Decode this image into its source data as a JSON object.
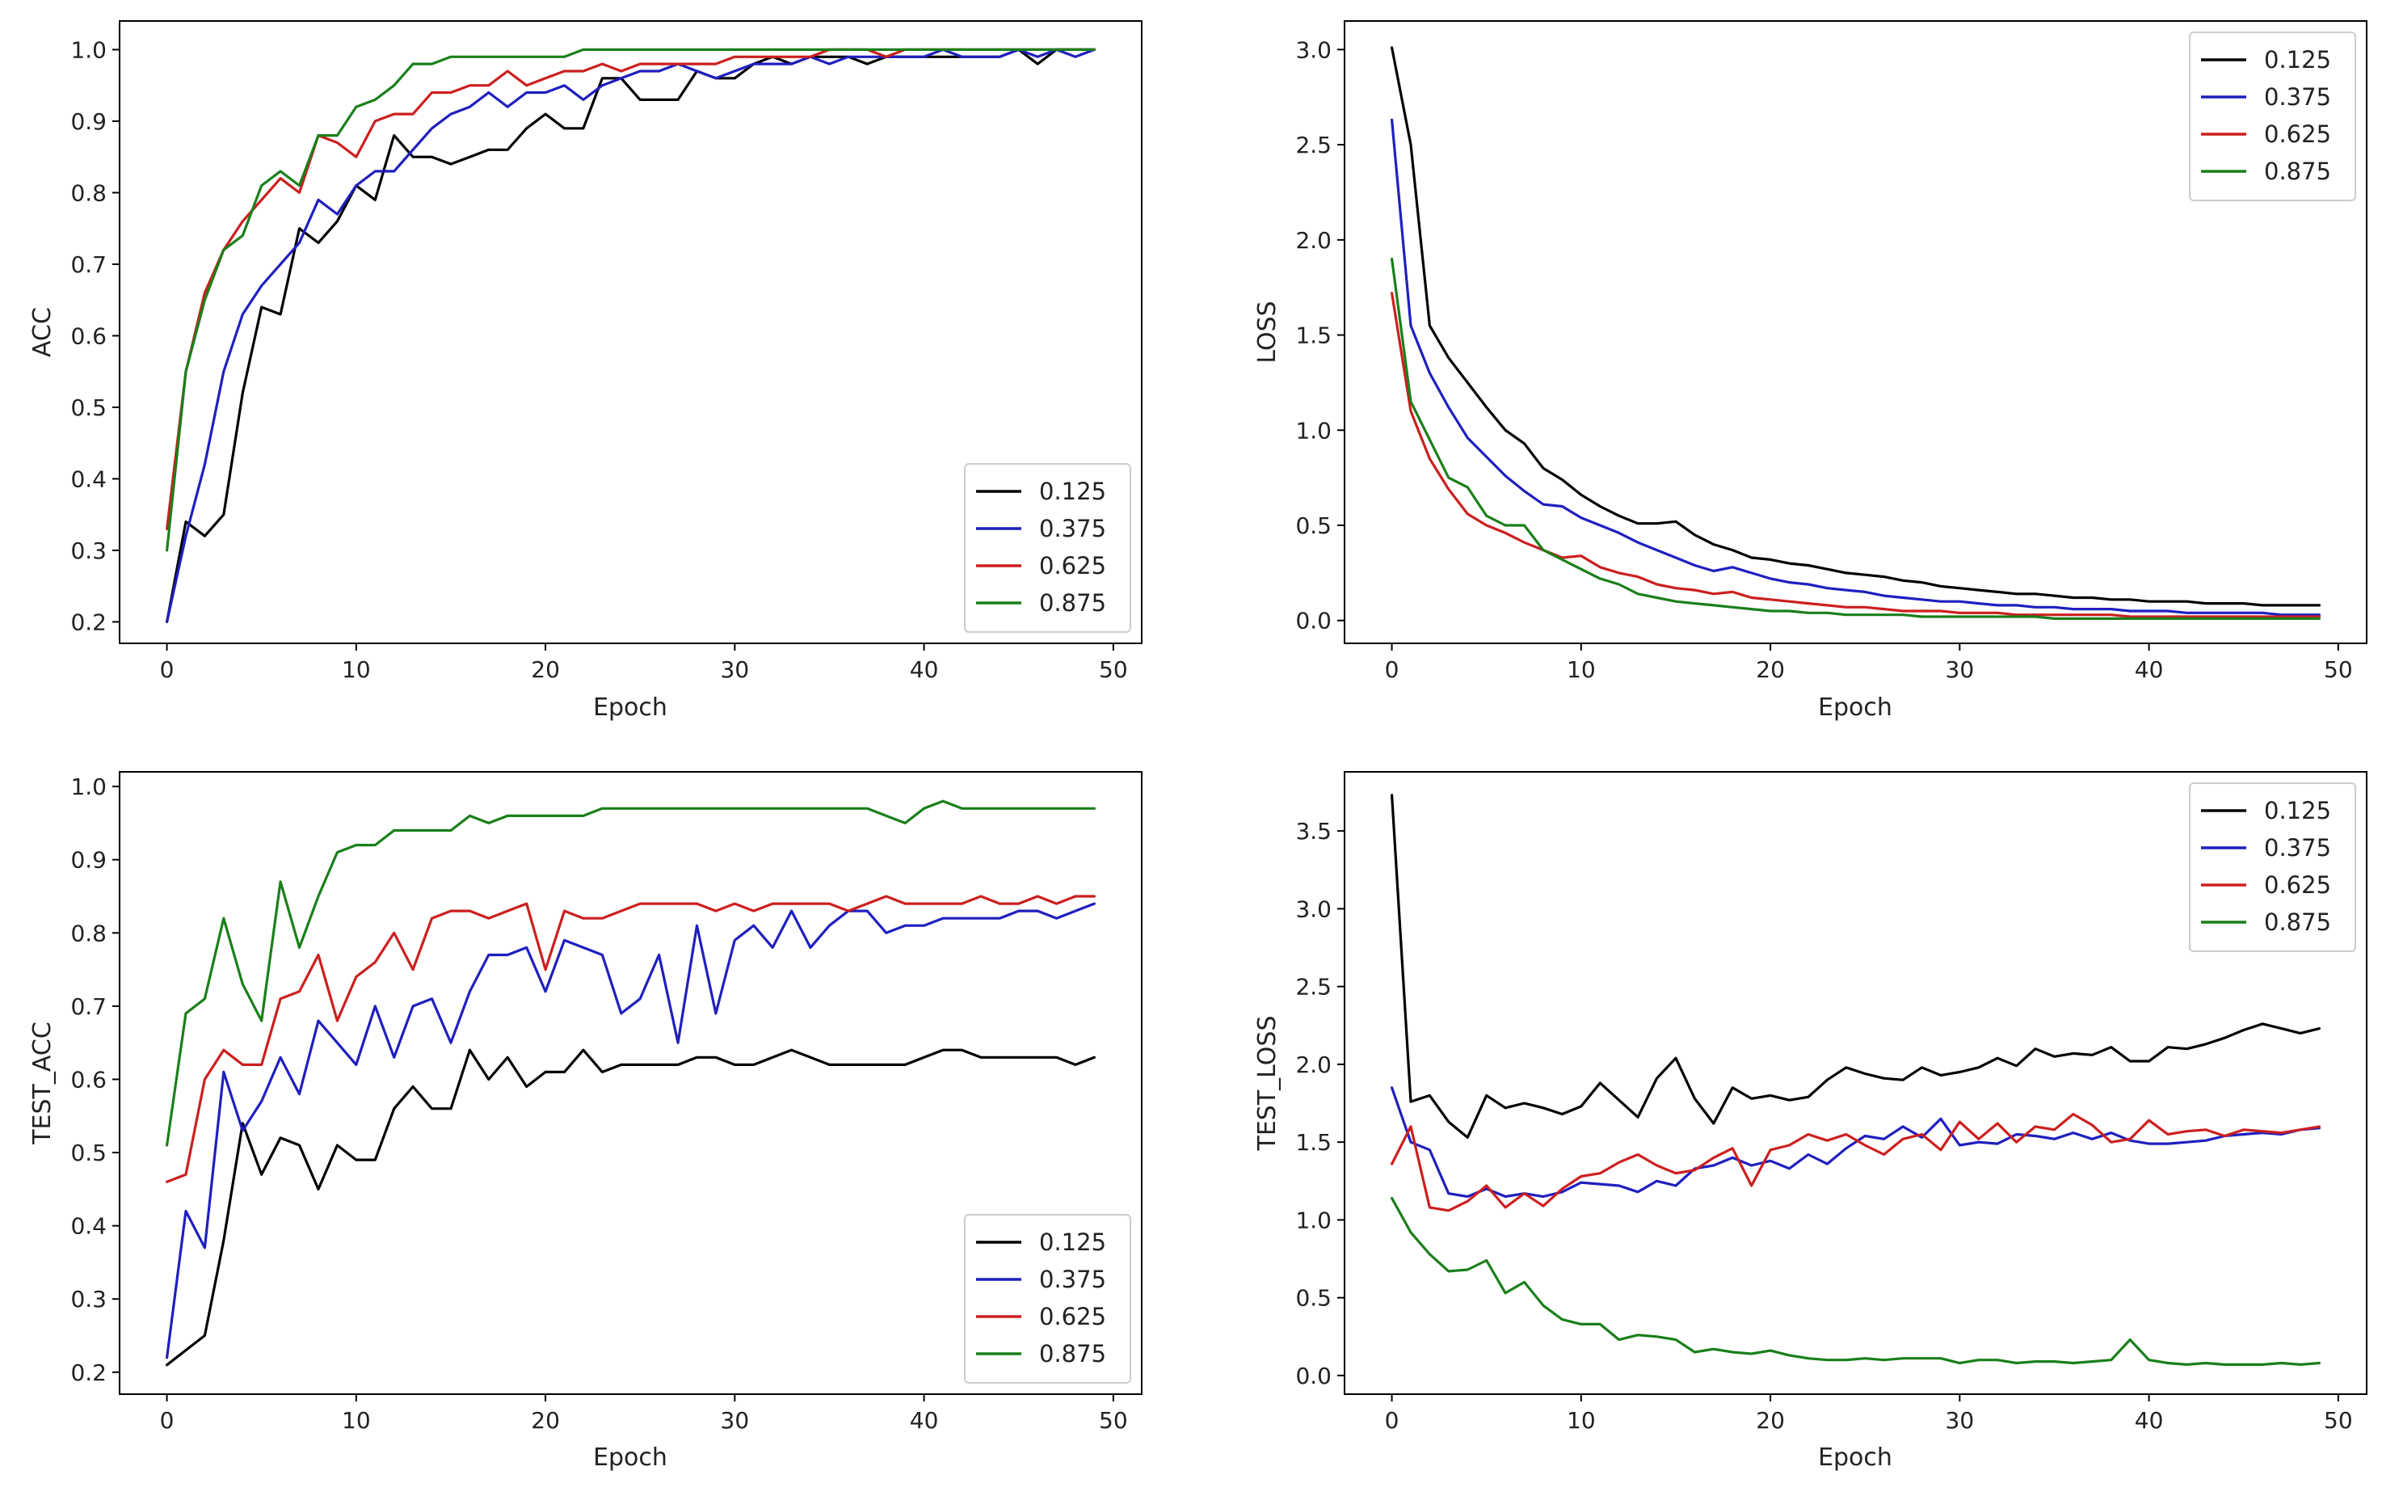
{
  "figure_title": "",
  "colors": {
    "0.125": "#000000",
    "0.375": "#1f1fbf",
    "0.625": "#cc1f1f",
    "0.875": "#1a7f1a"
  },
  "chart_data": [
    {
      "id": "acc",
      "type": "line",
      "title": "",
      "xlabel": "Epoch",
      "ylabel": "ACC",
      "xlim": [
        -2.5,
        51.5
      ],
      "ylim": [
        0.17,
        1.04
      ],
      "xticks": [
        0,
        10,
        20,
        30,
        40,
        50
      ],
      "yticks": [
        0.2,
        0.3,
        0.4,
        0.5,
        0.6,
        0.7,
        0.8,
        0.9,
        1.0
      ],
      "ytick_labels": [
        "0.2",
        "0.3",
        "0.4",
        "0.5",
        "0.6",
        "0.7",
        "0.8",
        "0.9",
        "1.0"
      ],
      "legend_position": "lower-right",
      "series": [
        {
          "name": "0.125",
          "values": [
            0.2,
            0.34,
            0.32,
            0.35,
            0.52,
            0.64,
            0.63,
            0.75,
            0.73,
            0.76,
            0.81,
            0.79,
            0.88,
            0.85,
            0.85,
            0.84,
            0.85,
            0.86,
            0.86,
            0.89,
            0.91,
            0.89,
            0.89,
            0.96,
            0.96,
            0.93,
            0.93,
            0.93,
            0.97,
            0.96,
            0.96,
            0.98,
            0.99,
            0.98,
            0.99,
            0.99,
            0.99,
            0.98,
            0.99,
            0.99,
            0.99,
            0.99,
            0.99,
            0.99,
            0.99,
            1.0,
            0.98,
            1.0,
            1.0,
            1.0
          ]
        },
        {
          "name": "0.375",
          "values": [
            0.2,
            0.32,
            0.42,
            0.55,
            0.63,
            0.67,
            0.7,
            0.73,
            0.79,
            0.77,
            0.81,
            0.83,
            0.83,
            0.86,
            0.89,
            0.91,
            0.92,
            0.94,
            0.92,
            0.94,
            0.94,
            0.95,
            0.93,
            0.95,
            0.96,
            0.97,
            0.97,
            0.98,
            0.97,
            0.96,
            0.97,
            0.98,
            0.98,
            0.98,
            0.99,
            0.98,
            0.99,
            0.99,
            0.99,
            0.99,
            0.99,
            1.0,
            0.99,
            0.99,
            0.99,
            1.0,
            0.99,
            1.0,
            0.99,
            1.0
          ]
        },
        {
          "name": "0.625",
          "values": [
            0.33,
            0.55,
            0.66,
            0.72,
            0.76,
            0.79,
            0.82,
            0.8,
            0.88,
            0.87,
            0.85,
            0.9,
            0.91,
            0.91,
            0.94,
            0.94,
            0.95,
            0.95,
            0.97,
            0.95,
            0.96,
            0.97,
            0.97,
            0.98,
            0.97,
            0.98,
            0.98,
            0.98,
            0.98,
            0.98,
            0.99,
            0.99,
            0.99,
            0.99,
            0.99,
            1.0,
            1.0,
            1.0,
            0.99,
            1.0,
            1.0,
            1.0,
            1.0,
            1.0,
            1.0,
            1.0,
            1.0,
            1.0,
            1.0,
            1.0
          ]
        },
        {
          "name": "0.875",
          "values": [
            0.3,
            0.55,
            0.65,
            0.72,
            0.74,
            0.81,
            0.83,
            0.81,
            0.88,
            0.88,
            0.92,
            0.93,
            0.95,
            0.98,
            0.98,
            0.99,
            0.99,
            0.99,
            0.99,
            0.99,
            0.99,
            0.99,
            1.0,
            1.0,
            1.0,
            1.0,
            1.0,
            1.0,
            1.0,
            1.0,
            1.0,
            1.0,
            1.0,
            1.0,
            1.0,
            1.0,
            1.0,
            1.0,
            1.0,
            1.0,
            1.0,
            1.0,
            1.0,
            1.0,
            1.0,
            1.0,
            1.0,
            1.0,
            1.0,
            1.0
          ]
        }
      ]
    },
    {
      "id": "loss",
      "type": "line",
      "title": "",
      "xlabel": "Epoch",
      "ylabel": "LOSS",
      "xlim": [
        -2.5,
        51.5
      ],
      "ylim": [
        -0.12,
        3.15
      ],
      "xticks": [
        0,
        10,
        20,
        30,
        40,
        50
      ],
      "yticks": [
        0.0,
        0.5,
        1.0,
        1.5,
        2.0,
        2.5,
        3.0
      ],
      "ytick_labels": [
        "0.0",
        "0.5",
        "1.0",
        "1.5",
        "2.0",
        "2.5",
        "3.0"
      ],
      "legend_position": "upper-right",
      "series": [
        {
          "name": "0.125",
          "values": [
            3.01,
            2.5,
            1.55,
            1.38,
            1.25,
            1.12,
            1.0,
            0.93,
            0.8,
            0.74,
            0.66,
            0.6,
            0.55,
            0.51,
            0.51,
            0.52,
            0.45,
            0.4,
            0.37,
            0.33,
            0.32,
            0.3,
            0.29,
            0.27,
            0.25,
            0.24,
            0.23,
            0.21,
            0.2,
            0.18,
            0.17,
            0.16,
            0.15,
            0.14,
            0.14,
            0.13,
            0.12,
            0.12,
            0.11,
            0.11,
            0.1,
            0.1,
            0.1,
            0.09,
            0.09,
            0.09,
            0.08,
            0.08,
            0.08,
            0.08
          ]
        },
        {
          "name": "0.375",
          "values": [
            2.63,
            1.55,
            1.3,
            1.12,
            0.96,
            0.86,
            0.76,
            0.68,
            0.61,
            0.6,
            0.54,
            0.5,
            0.46,
            0.41,
            0.37,
            0.33,
            0.29,
            0.26,
            0.28,
            0.25,
            0.22,
            0.2,
            0.19,
            0.17,
            0.16,
            0.15,
            0.13,
            0.12,
            0.11,
            0.1,
            0.1,
            0.09,
            0.08,
            0.08,
            0.07,
            0.07,
            0.06,
            0.06,
            0.06,
            0.05,
            0.05,
            0.05,
            0.04,
            0.04,
            0.04,
            0.04,
            0.04,
            0.03,
            0.03,
            0.03
          ]
        },
        {
          "name": "0.625",
          "values": [
            1.72,
            1.1,
            0.85,
            0.69,
            0.56,
            0.5,
            0.46,
            0.41,
            0.37,
            0.33,
            0.34,
            0.28,
            0.25,
            0.23,
            0.19,
            0.17,
            0.16,
            0.14,
            0.15,
            0.12,
            0.11,
            0.1,
            0.09,
            0.08,
            0.07,
            0.07,
            0.06,
            0.05,
            0.05,
            0.05,
            0.04,
            0.04,
            0.04,
            0.03,
            0.03,
            0.03,
            0.03,
            0.03,
            0.03,
            0.02,
            0.02,
            0.02,
            0.02,
            0.02,
            0.02,
            0.02,
            0.02,
            0.02,
            0.02,
            0.02
          ]
        },
        {
          "name": "0.875",
          "values": [
            1.9,
            1.15,
            0.95,
            0.75,
            0.7,
            0.55,
            0.5,
            0.5,
            0.37,
            0.32,
            0.27,
            0.22,
            0.19,
            0.14,
            0.12,
            0.1,
            0.09,
            0.08,
            0.07,
            0.06,
            0.05,
            0.05,
            0.04,
            0.04,
            0.03,
            0.03,
            0.03,
            0.03,
            0.02,
            0.02,
            0.02,
            0.02,
            0.02,
            0.02,
            0.02,
            0.01,
            0.01,
            0.01,
            0.01,
            0.01,
            0.01,
            0.01,
            0.01,
            0.01,
            0.01,
            0.01,
            0.01,
            0.01,
            0.01,
            0.01
          ]
        }
      ]
    },
    {
      "id": "test-acc",
      "type": "line",
      "title": "",
      "xlabel": "Epoch",
      "ylabel": "TEST_ACC",
      "xlim": [
        -2.5,
        51.5
      ],
      "ylim": [
        0.17,
        1.02
      ],
      "xticks": [
        0,
        10,
        20,
        30,
        40,
        50
      ],
      "yticks": [
        0.2,
        0.3,
        0.4,
        0.5,
        0.6,
        0.7,
        0.8,
        0.9,
        1.0
      ],
      "ytick_labels": [
        "0.2",
        "0.3",
        "0.4",
        "0.5",
        "0.6",
        "0.7",
        "0.8",
        "0.9",
        "1.0"
      ],
      "legend_position": "lower-right",
      "series": [
        {
          "name": "0.125",
          "values": [
            0.21,
            0.23,
            0.25,
            0.38,
            0.54,
            0.47,
            0.52,
            0.51,
            0.45,
            0.51,
            0.49,
            0.49,
            0.56,
            0.59,
            0.56,
            0.56,
            0.64,
            0.6,
            0.63,
            0.59,
            0.61,
            0.61,
            0.64,
            0.61,
            0.62,
            0.62,
            0.62,
            0.62,
            0.63,
            0.63,
            0.62,
            0.62,
            0.63,
            0.64,
            0.63,
            0.62,
            0.62,
            0.62,
            0.62,
            0.62,
            0.63,
            0.64,
            0.64,
            0.63,
            0.63,
            0.63,
            0.63,
            0.63,
            0.62,
            0.63
          ]
        },
        {
          "name": "0.375",
          "values": [
            0.22,
            0.42,
            0.37,
            0.61,
            0.53,
            0.57,
            0.63,
            0.58,
            0.68,
            0.65,
            0.62,
            0.7,
            0.63,
            0.7,
            0.71,
            0.65,
            0.72,
            0.77,
            0.77,
            0.78,
            0.72,
            0.79,
            0.78,
            0.77,
            0.69,
            0.71,
            0.77,
            0.65,
            0.81,
            0.69,
            0.79,
            0.81,
            0.78,
            0.83,
            0.78,
            0.81,
            0.83,
            0.83,
            0.8,
            0.81,
            0.81,
            0.82,
            0.82,
            0.82,
            0.82,
            0.83,
            0.83,
            0.82,
            0.83,
            0.84
          ]
        },
        {
          "name": "0.625",
          "values": [
            0.46,
            0.47,
            0.6,
            0.64,
            0.62,
            0.62,
            0.71,
            0.72,
            0.77,
            0.68,
            0.74,
            0.76,
            0.8,
            0.75,
            0.82,
            0.83,
            0.83,
            0.82,
            0.83,
            0.84,
            0.75,
            0.83,
            0.82,
            0.82,
            0.83,
            0.84,
            0.84,
            0.84,
            0.84,
            0.83,
            0.84,
            0.83,
            0.84,
            0.84,
            0.84,
            0.84,
            0.83,
            0.84,
            0.85,
            0.84,
            0.84,
            0.84,
            0.84,
            0.85,
            0.84,
            0.84,
            0.85,
            0.84,
            0.85,
            0.85
          ]
        },
        {
          "name": "0.875",
          "values": [
            0.51,
            0.69,
            0.71,
            0.82,
            0.73,
            0.68,
            0.87,
            0.78,
            0.85,
            0.91,
            0.92,
            0.92,
            0.94,
            0.94,
            0.94,
            0.94,
            0.96,
            0.95,
            0.96,
            0.96,
            0.96,
            0.96,
            0.96,
            0.97,
            0.97,
            0.97,
            0.97,
            0.97,
            0.97,
            0.97,
            0.97,
            0.97,
            0.97,
            0.97,
            0.97,
            0.97,
            0.97,
            0.97,
            0.96,
            0.95,
            0.97,
            0.98,
            0.97,
            0.97,
            0.97,
            0.97,
            0.97,
            0.97,
            0.97,
            0.97
          ]
        }
      ]
    },
    {
      "id": "test-loss",
      "type": "line",
      "title": "",
      "xlabel": "Epoch",
      "ylabel": "TEST_LOSS",
      "xlim": [
        -2.5,
        51.5
      ],
      "ylim": [
        -0.12,
        3.88
      ],
      "xticks": [
        0,
        10,
        20,
        30,
        40,
        50
      ],
      "yticks": [
        0.0,
        0.5,
        1.0,
        1.5,
        2.0,
        2.5,
        3.0,
        3.5
      ],
      "ytick_labels": [
        "0.0",
        "0.5",
        "1.0",
        "1.5",
        "2.0",
        "2.5",
        "3.0",
        "3.5"
      ],
      "legend_position": "upper-right",
      "series": [
        {
          "name": "0.125",
          "values": [
            3.73,
            1.76,
            1.8,
            1.63,
            1.53,
            1.8,
            1.72,
            1.75,
            1.72,
            1.68,
            1.73,
            1.88,
            1.77,
            1.66,
            1.91,
            2.04,
            1.78,
            1.62,
            1.85,
            1.78,
            1.8,
            1.77,
            1.79,
            1.9,
            1.98,
            1.94,
            1.91,
            1.9,
            1.98,
            1.93,
            1.95,
            1.98,
            2.04,
            1.99,
            2.1,
            2.05,
            2.07,
            2.06,
            2.11,
            2.02,
            2.02,
            2.11,
            2.1,
            2.13,
            2.17,
            2.22,
            2.26,
            2.23,
            2.2,
            2.23
          ]
        },
        {
          "name": "0.375",
          "values": [
            1.85,
            1.5,
            1.45,
            1.17,
            1.15,
            1.2,
            1.15,
            1.17,
            1.15,
            1.18,
            1.24,
            1.23,
            1.22,
            1.18,
            1.25,
            1.22,
            1.33,
            1.35,
            1.4,
            1.35,
            1.38,
            1.33,
            1.42,
            1.36,
            1.46,
            1.54,
            1.52,
            1.6,
            1.53,
            1.65,
            1.48,
            1.5,
            1.49,
            1.55,
            1.54,
            1.52,
            1.56,
            1.52,
            1.56,
            1.51,
            1.49,
            1.49,
            1.5,
            1.51,
            1.54,
            1.55,
            1.56,
            1.55,
            1.58,
            1.59
          ]
        },
        {
          "name": "0.625",
          "values": [
            1.36,
            1.6,
            1.08,
            1.06,
            1.12,
            1.22,
            1.08,
            1.17,
            1.09,
            1.2,
            1.28,
            1.3,
            1.37,
            1.42,
            1.35,
            1.3,
            1.32,
            1.4,
            1.46,
            1.22,
            1.45,
            1.48,
            1.55,
            1.51,
            1.55,
            1.48,
            1.42,
            1.52,
            1.55,
            1.45,
            1.63,
            1.52,
            1.62,
            1.5,
            1.6,
            1.58,
            1.68,
            1.61,
            1.5,
            1.52,
            1.64,
            1.55,
            1.57,
            1.58,
            1.54,
            1.58,
            1.57,
            1.56,
            1.58,
            1.6
          ]
        },
        {
          "name": "0.875",
          "values": [
            1.14,
            0.92,
            0.78,
            0.67,
            0.68,
            0.74,
            0.53,
            0.6,
            0.45,
            0.36,
            0.33,
            0.33,
            0.23,
            0.26,
            0.25,
            0.23,
            0.15,
            0.17,
            0.15,
            0.14,
            0.16,
            0.13,
            0.11,
            0.1,
            0.1,
            0.11,
            0.1,
            0.11,
            0.11,
            0.11,
            0.08,
            0.1,
            0.1,
            0.08,
            0.09,
            0.09,
            0.08,
            0.09,
            0.1,
            0.23,
            0.1,
            0.08,
            0.07,
            0.08,
            0.07,
            0.07,
            0.07,
            0.08,
            0.07,
            0.08
          ]
        }
      ]
    }
  ]
}
